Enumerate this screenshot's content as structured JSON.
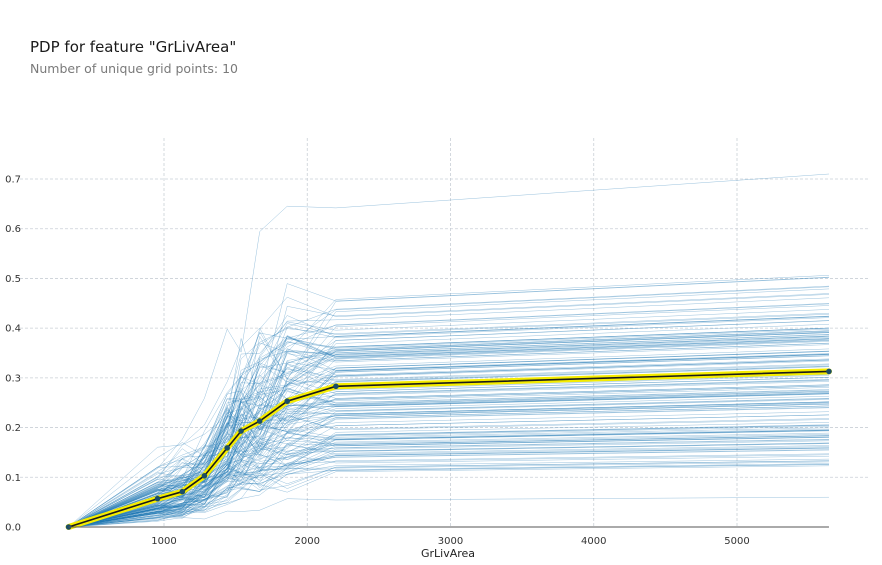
{
  "header": {
    "title": "PDP for feature \"GrLivArea\"",
    "subtitle": "Number of unique grid points: 10"
  },
  "chart_data": {
    "type": "line",
    "title": "PDP for feature \"GrLivArea\"",
    "subtitle": "Number of unique grid points: 10",
    "xlabel": "GrLivArea",
    "ylabel": "",
    "xlim": [
      0,
      5900
    ],
    "ylim": [
      0,
      0.78
    ],
    "x_ticks": [
      1000,
      2000,
      3000,
      4000,
      5000
    ],
    "y_ticks": [
      0.0,
      0.1,
      0.2,
      0.3,
      0.4,
      0.5,
      0.6,
      0.7
    ],
    "grid": true,
    "colors": {
      "pdp_line": "#1a1a1a",
      "pdp_band": "#f5ec00",
      "pdp_points": "#1a4d66",
      "ice_lines": "#1f77b4",
      "grid": "#c9cfd6"
    },
    "x": [
      334,
      955,
      1128,
      1282,
      1441,
      1538,
      1668,
      1860,
      2200,
      5642
    ],
    "series": [
      {
        "role": "average",
        "values": [
          0.0,
          0.057,
          0.071,
          0.103,
          0.159,
          0.193,
          0.213,
          0.253,
          0.283,
          0.313
        ]
      }
    ],
    "ice_lines": {
      "count": 160,
      "min_final_value": 0.06,
      "max_final_value": 0.71
    }
  }
}
